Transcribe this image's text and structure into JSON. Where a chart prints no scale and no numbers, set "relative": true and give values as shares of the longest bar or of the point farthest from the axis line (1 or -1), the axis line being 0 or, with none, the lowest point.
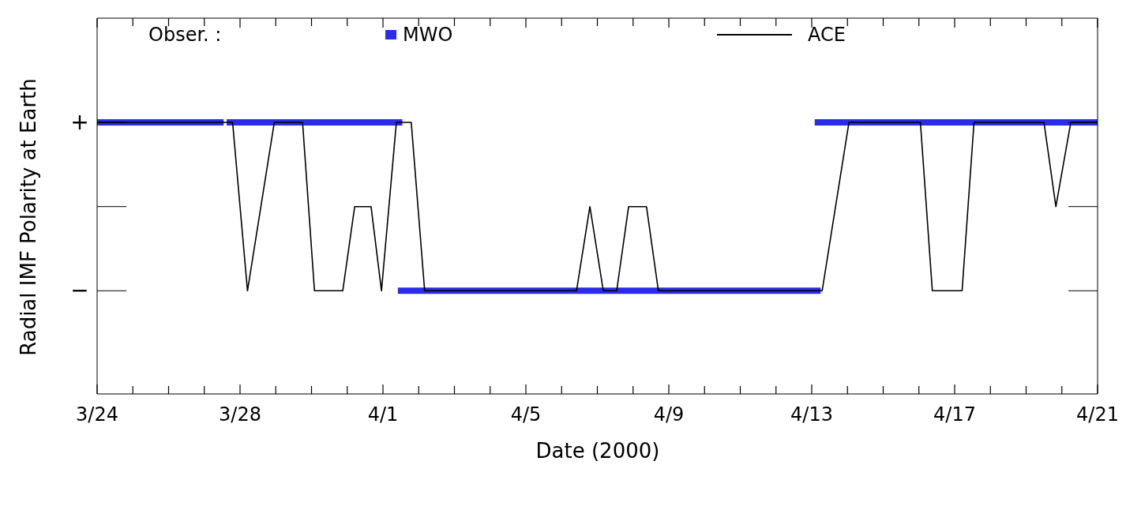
{
  "chart_data": {
    "type": "line",
    "xlabel": "Date (2000)",
    "ylabel": "Radial IMF Polarity at Earth",
    "legend_title": "Obser. :",
    "legend": "top",
    "relative": true,
    "annotations": [
      "+",
      "−"
    ],
    "xlim": [
      "2000-03-24",
      "2000-04-21"
    ],
    "xticks": [
      {
        "value": "2000-03-24",
        "label": "3/24"
      },
      {
        "value": "2000-03-25",
        "label": null
      },
      {
        "value": "2000-03-26",
        "label": null
      },
      {
        "value": "2000-03-27",
        "label": null
      },
      {
        "value": "2000-03-28",
        "label": "3/28"
      },
      {
        "value": "2000-03-29",
        "label": null
      },
      {
        "value": "2000-03-30",
        "label": null
      },
      {
        "value": "2000-03-31",
        "label": null
      },
      {
        "value": "2000-04-01",
        "label": "4/1"
      },
      {
        "value": "2000-04-02",
        "label": null
      },
      {
        "value": "2000-04-03",
        "label": null
      },
      {
        "value": "2000-04-04",
        "label": null
      },
      {
        "value": "2000-04-05",
        "label": "4/5"
      },
      {
        "value": "2000-04-06",
        "label": null
      },
      {
        "value": "2000-04-07",
        "label": null
      },
      {
        "value": "2000-04-08",
        "label": null
      },
      {
        "value": "2000-04-09",
        "label": "4/9"
      },
      {
        "value": "2000-04-10",
        "label": null
      },
      {
        "value": "2000-04-11",
        "label": null
      },
      {
        "value": "2000-04-12",
        "label": null
      },
      {
        "value": "2000-04-13",
        "label": "4/13"
      },
      {
        "value": "2000-04-14",
        "label": null
      },
      {
        "value": "2000-04-15",
        "label": null
      },
      {
        "value": "2000-04-16",
        "label": null
      },
      {
        "value": "2000-04-17",
        "label": "4/17"
      },
      {
        "value": "2000-04-18",
        "label": null
      },
      {
        "value": "2000-04-19",
        "label": null
      },
      {
        "value": "2000-04-20",
        "label": null
      },
      {
        "value": "2000-04-21",
        "label": "4/21"
      }
    ],
    "series": [
      {
        "name": "MWO",
        "color": "#2b2bea",
        "x": [
          "2000-03-24",
          "2000-03-27T13:00",
          "2000-03-27T14:00",
          "2000-03-27T15:00",
          "2000-04-01T13:00",
          "2000-04-01T12:00",
          "2000-04-01T10:00",
          "2000-04-13T06:00",
          "2000-04-13T04:00",
          "2000-04-13T02:00",
          "2000-04-21"
        ],
        "values": [
          1,
          1,
          null,
          1,
          1,
          null,
          0.38,
          0.38,
          null,
          1,
          1
        ]
      },
      {
        "name": "ACE",
        "color": "#000000",
        "x": [
          "2000-03-24",
          "2000-03-27T19:00",
          "2000-03-28T05:00",
          "2000-03-28T23:00",
          "2000-03-29T18:00",
          "2000-03-30T02:00",
          "2000-03-30T21:00",
          "2000-03-31T05:00",
          "2000-03-31T16:00",
          "2000-03-31T23:00",
          "2000-04-01T09:00",
          "2000-04-01T19:00",
          "2000-04-02T04:00",
          "2000-04-06T10:00",
          "2000-04-06T19:00",
          "2000-04-07T04:00",
          "2000-04-07T13:00",
          "2000-04-07T21:00",
          "2000-04-08T09:00",
          "2000-04-08T17:00",
          "2000-04-13T07:00",
          "2000-04-14T01:00",
          "2000-04-16T01:00",
          "2000-04-16T09:00",
          "2000-04-17T05:00",
          "2000-04-17T13:00",
          "2000-04-19T12:00",
          "2000-04-19T20:00",
          "2000-04-20T06:00",
          "2000-04-21"
        ],
        "values": [
          1,
          1,
          0.38,
          1,
          1,
          0.38,
          0.38,
          0.69,
          0.69,
          0.38,
          1,
          1,
          0.38,
          0.38,
          0.69,
          0.38,
          0.38,
          0.69,
          0.69,
          0.38,
          0.38,
          1,
          1,
          0.38,
          0.38,
          1,
          1,
          0.69,
          1,
          1
        ]
      }
    ]
  }
}
